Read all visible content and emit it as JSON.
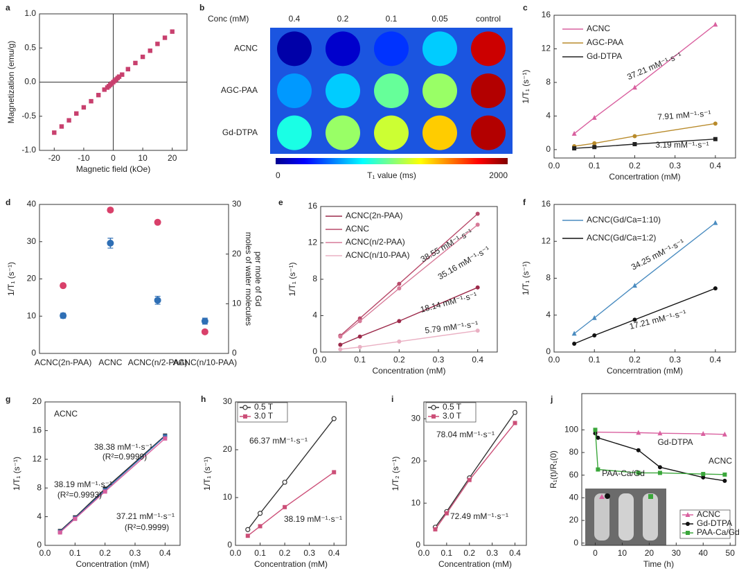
{
  "chart_data": [
    {
      "type": "scatter",
      "label": "a",
      "xlabel": "Magnetic field (kOe)",
      "ylabel": "Magnetization (emu/g)",
      "x": [
        -20,
        -17.5,
        -15,
        -12.5,
        -10,
        -7.5,
        -5,
        -3,
        -2,
        -1.5,
        -1,
        -0.5,
        0,
        0.5,
        1,
        1.5,
        2,
        3,
        5,
        7.5,
        10,
        12.5,
        15,
        17.5,
        20
      ],
      "values": [
        -0.74,
        -0.65,
        -0.56,
        -0.46,
        -0.37,
        -0.28,
        -0.19,
        -0.11,
        -0.08,
        -0.06,
        -0.04,
        -0.02,
        0,
        0.02,
        0.04,
        0.06,
        0.08,
        0.11,
        0.19,
        0.28,
        0.37,
        0.46,
        0.56,
        0.65,
        0.74
      ],
      "color": "#c8406e",
      "marker": "square",
      "xlim": [
        -25,
        25
      ],
      "xticks": [
        -20,
        -10,
        0,
        10,
        20
      ],
      "ylim": [
        -1,
        1
      ],
      "yticks": [
        {
          "value": -1,
          "label": "-1.0"
        },
        -0.5,
        {
          "value": 0,
          "label": "0.0"
        },
        0.5,
        {
          "value": 1,
          "label": "1.0"
        }
      ],
      "zero_lines": true
    },
    {
      "type": "heatmap",
      "label": "b",
      "corner_label": "Conc (mM)",
      "columns": [
        "0.4",
        "0.2",
        "0.1",
        "0.05",
        "control"
      ],
      "rows": [
        "ACNC",
        "AGC-PAA",
        "Gd-DTPA"
      ],
      "values": [
        [
          80,
          150,
          350,
          650,
          1850
        ],
        [
          550,
          650,
          950,
          1050,
          1900
        ],
        [
          800,
          1050,
          1150,
          1350,
          1900
        ]
      ],
      "clim": [
        0,
        2000
      ],
      "cticks": [
        0,
        2000
      ],
      "colorbar_label": "T₁ value (ms)",
      "colormap": "jet",
      "background": "#1b55e0"
    },
    {
      "type": "line",
      "label": "c",
      "xlabel": "Concertration (mM)",
      "ylabel": "1/T₁ (s⁻¹)",
      "x": [
        0.05,
        0.1,
        0.2,
        0.4
      ],
      "xlim": [
        0,
        0.45
      ],
      "xticks": [
        {
          "value": 0,
          "label": "0.0"
        },
        0.1,
        0.2,
        0.3,
        0.4
      ],
      "ylim": [
        -1,
        16
      ],
      "yticks": [
        0,
        4,
        8,
        12,
        16
      ],
      "legend": "upper left",
      "series": [
        {
          "name": "ACNC",
          "color": "#d9609f",
          "marker": "triangle",
          "values": [
            1.9,
            3.8,
            7.4,
            14.9
          ]
        },
        {
          "name": "AGC-PAA",
          "color": "#b88a2a",
          "marker": "circle",
          "values": [
            0.4,
            0.75,
            1.6,
            3.1
          ]
        },
        {
          "name": "Gd-DTPA",
          "color": "#222222",
          "marker": "square",
          "values": [
            0.15,
            0.3,
            0.65,
            1.25
          ]
        }
      ],
      "annotations": [
        {
          "text": "37.21 mM⁻¹·s⁻¹",
          "color": "#d9609f"
        },
        {
          "text": "7.91 mM⁻¹·s⁻¹",
          "color": "#a07820"
        },
        {
          "text": "3.19 mM⁻¹·s⁻¹",
          "color": "#222222"
        }
      ]
    },
    {
      "type": "errorbar",
      "label": "d",
      "ylabel": "1/T₁ (s⁻¹)",
      "ylabel_color": "#d9406a",
      "y2label": [
        "moles of water molecules",
        "per mole of Gd"
      ],
      "y2label_color": "#5a8fc0",
      "categories": [
        "ACNC(2n-PAA)",
        "ACNC",
        "ACNC(n/2-PAA)",
        "ACNC(n/10-PAA)"
      ],
      "ylim": [
        0,
        40
      ],
      "yticks": [
        0,
        10,
        20,
        30,
        40
      ],
      "y2lim": [
        0,
        30
      ],
      "y2ticks": [
        0,
        10,
        20,
        30
      ],
      "series": [
        {
          "color": "#d9406a",
          "values": [
            18.2,
            38.5,
            35.2,
            5.8
          ],
          "errors": [
            0.5,
            0.5,
            0.5,
            0.5
          ]
        },
        {
          "color": "#2f6fb5",
          "axis": "y2",
          "values": [
            7.6,
            22.2,
            10.7,
            6.5
          ],
          "errors": [
            0.5,
            1,
            0.8,
            0.6
          ]
        }
      ]
    },
    {
      "type": "line",
      "label": "e",
      "xlabel": "Concentration (mM)",
      "ylabel": "1/T₁ (s⁻¹)",
      "x": [
        0.05,
        0.1,
        0.2,
        0.4
      ],
      "xlim": [
        0,
        0.45
      ],
      "xticks": [
        {
          "value": 0,
          "label": "0.0"
        },
        0.1,
        0.2,
        0.3,
        0.4
      ],
      "ylim": [
        0,
        16
      ],
      "yticks": [
        0,
        4,
        8,
        12,
        16
      ],
      "legend": "upper left",
      "series": [
        {
          "name": "ACNC(2n-PAA)",
          "color": "#9c2a4a",
          "marker": "circle",
          "values": [
            0.8,
            1.7,
            3.4,
            7.1
          ]
        },
        {
          "name": "ACNC",
          "color": "#b84a6a",
          "marker": "circle",
          "values": [
            1.8,
            3.7,
            7.5,
            15.2
          ]
        },
        {
          "name": "ACNC(n/2-PAA)",
          "color": "#d77a98",
          "marker": "circle",
          "values": [
            1.7,
            3.4,
            7.0,
            14.0
          ]
        },
        {
          "name": "ACNC(n/10-PAA)",
          "color": "#eab0c3",
          "marker": "circle",
          "values": [
            0.3,
            0.55,
            1.15,
            2.35
          ]
        }
      ],
      "annotations": [
        {
          "text": "38.55 mM⁻¹·s⁻¹",
          "color": "#b84a6a"
        },
        {
          "text": "35.16 mM⁻¹·s⁻¹",
          "color": "#d77a98"
        },
        {
          "text": "18.14 mM⁻¹·s⁻¹",
          "color": "#9c2a4a"
        },
        {
          "text": "5.79 mM⁻¹·s⁻¹",
          "color": "#eab0c3"
        }
      ]
    },
    {
      "type": "line",
      "label": "f",
      "xlabel": "Concerntration (mM)",
      "ylabel": "1/T₁ (s⁻¹)",
      "x": [
        0.05,
        0.1,
        0.2,
        0.4
      ],
      "xlim": [
        0,
        0.45
      ],
      "xticks": [
        {
          "value": 0,
          "label": "0.0"
        },
        0.1,
        0.2,
        0.3,
        0.4
      ],
      "ylim": [
        0,
        16
      ],
      "yticks": [
        0,
        4,
        8,
        12,
        16
      ],
      "legend": "upper left",
      "series": [
        {
          "name": "ACNC(Gd/Ca=1:10)",
          "color": "#4a8cc0",
          "marker": "triangle",
          "values": [
            2.0,
            3.7,
            7.2,
            14.0
          ]
        },
        {
          "name": "ACNC(Gd/Ca=1:2)",
          "color": "#111111",
          "marker": "circle",
          "values": [
            0.9,
            1.8,
            3.5,
            6.9
          ]
        }
      ],
      "annotations": [
        {
          "text": "34.25 mM⁻¹·s⁻¹",
          "color": "#3a7cb0"
        },
        {
          "text": "17.21 mM⁻¹·s⁻¹",
          "color": "#111111"
        }
      ]
    },
    {
      "type": "line",
      "label": "g",
      "xlabel": "Concentration (mM)",
      "ylabel": "1/T₁ (s⁻¹)",
      "x": [
        0.05,
        0.1,
        0.2,
        0.4
      ],
      "xlim": [
        0,
        0.45
      ],
      "xticks": [
        {
          "value": 0,
          "label": "0.0"
        },
        0.1,
        0.2,
        0.3,
        0.4
      ],
      "ylim": [
        0,
        20
      ],
      "yticks": [
        0,
        4,
        8,
        12,
        16,
        20
      ],
      "series": [
        {
          "color": "#222222",
          "marker": "square",
          "values": [
            2.0,
            3.9,
            7.9,
            15.3
          ]
        },
        {
          "color": "#3a6fb0",
          "marker": "square",
          "values": [
            1.9,
            3.8,
            7.7,
            15.2
          ]
        },
        {
          "color": "#d9609f",
          "marker": "square",
          "values": [
            1.8,
            3.7,
            7.5,
            14.9
          ]
        }
      ],
      "annotations": [
        {
          "text": "ACNC",
          "color": "#d9609f"
        },
        {
          "text": "38.38 mM⁻¹·s⁻¹",
          "color": "#3a6fb0"
        },
        {
          "text": "(R²=0.9999)",
          "color": "#3a6fb0"
        },
        {
          "text": "38.19 mM⁻¹·s⁻¹",
          "color": "#222222"
        },
        {
          "text": "(R²=0.9993)",
          "color": "#222222"
        },
        {
          "text": "37.21 mM⁻¹·s⁻¹",
          "color": "#d9609f"
        },
        {
          "text": "(R²=0.9999)",
          "color": "#d9609f"
        }
      ]
    },
    {
      "type": "line",
      "label": "h",
      "xlabel": "Concentration (mM)",
      "ylabel": "1/T₁ (s⁻¹)",
      "x": [
        0.05,
        0.1,
        0.2,
        0.4
      ],
      "xlim": [
        0,
        0.45
      ],
      "xticks": [
        {
          "value": 0,
          "label": "0.0"
        },
        0.1,
        0.2,
        0.3,
        0.4
      ],
      "ylim": [
        0,
        30
      ],
      "yticks": [
        0,
        10,
        20,
        30
      ],
      "legend": "upper left",
      "legend_box": true,
      "series": [
        {
          "name": "0.5 T",
          "color": "#333333",
          "marker": "open-circle",
          "values": [
            3.3,
            6.7,
            13.2,
            26.5
          ]
        },
        {
          "name": "3.0 T",
          "color": "#cc4f78",
          "marker": "square",
          "values": [
            2.0,
            4.0,
            8.0,
            15.3
          ]
        }
      ],
      "annotations": [
        {
          "text": "66.37 mM⁻¹·s⁻¹",
          "color": "#333333"
        },
        {
          "text": "38.19 mM⁻¹·s⁻¹",
          "color": "#cc4f78"
        }
      ]
    },
    {
      "type": "line",
      "label": "i",
      "xlabel": "Concentration (mM)",
      "ylabel": "1/T₂ (s⁻¹)",
      "x": [
        0.05,
        0.1,
        0.2,
        0.4
      ],
      "xlim": [
        0,
        0.45
      ],
      "xticks": [
        {
          "value": 0,
          "label": "0.0"
        },
        0.1,
        0.2,
        0.3,
        0.4
      ],
      "ylim": [
        0,
        34
      ],
      "yticks": [
        0,
        10,
        20,
        30
      ],
      "legend": "upper left",
      "legend_box": true,
      "series": [
        {
          "name": "0.5 T",
          "color": "#333333",
          "marker": "open-circle",
          "values": [
            4.3,
            8.0,
            16.0,
            31.5
          ]
        },
        {
          "name": "3.0 T",
          "color": "#cc4f78",
          "marker": "square",
          "values": [
            3.8,
            7.6,
            15.5,
            29.0
          ]
        }
      ],
      "annotations": [
        {
          "text": "78.04 mM⁻¹·s⁻¹",
          "color": "#333333"
        },
        {
          "text": "72.49 mM⁻¹·s⁻¹",
          "color": "#cc4f78"
        }
      ]
    },
    {
      "type": "line",
      "label": "j",
      "xlabel": "Time (h)",
      "ylabel": "R₁(t)/R₁(0)",
      "xlim": [
        -5,
        52
      ],
      "xticks": [
        0,
        10,
        20,
        30,
        40,
        50
      ],
      "ylim": [
        -2,
        132
      ],
      "yticks": [
        0,
        20,
        40,
        60,
        80,
        100
      ],
      "legend": "lower right",
      "legend_box": true,
      "series": [
        {
          "name": "ACNC",
          "color": "#d9609f",
          "marker": "triangle",
          "x": [
            0,
            16,
            24,
            40,
            48
          ],
          "values": [
            98,
            97.5,
            97,
            96.5,
            96
          ]
        },
        {
          "name": "Gd-DTPA",
          "color": "#111111",
          "marker": "circle",
          "x": [
            0,
            1,
            16,
            24,
            40,
            48
          ],
          "values": [
            97,
            93,
            82,
            67,
            58,
            55
          ]
        },
        {
          "name": "PAA-Ca/Gd",
          "color": "#3aa63a",
          "marker": "square",
          "x": [
            0,
            1,
            16,
            24,
            40,
            48
          ],
          "values": [
            100,
            65,
            62,
            62,
            61,
            60.5
          ]
        }
      ],
      "annotations": [
        {
          "text": "ACNC",
          "color": "#d9609f"
        },
        {
          "text": "Gd-DTPA",
          "color": "#111111"
        },
        {
          "text": "PAA-Ca/Gd",
          "color": "#3aa63a"
        }
      ]
    }
  ]
}
